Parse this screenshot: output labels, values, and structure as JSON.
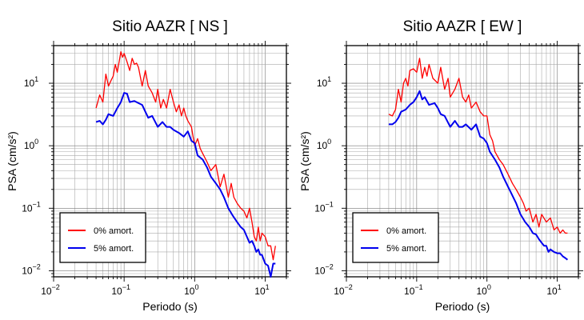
{
  "chart_data": [
    {
      "type": "line",
      "title": "Sitio AAZR [ NS ]",
      "xlabel": "Periodo (s)",
      "ylabel": "PSA (cm/s²)",
      "xscale": "log",
      "yscale": "log",
      "xlim": [
        0.01,
        20
      ],
      "ylim": [
        0.008,
        40
      ],
      "grid": true,
      "legend_position": "bottom-left",
      "xticks": [
        {
          "base": "10",
          "exp": "−2",
          "value": 0.01
        },
        {
          "base": "10",
          "exp": "−1",
          "value": 0.1
        },
        {
          "base": "10",
          "exp": "0",
          "value": 1
        },
        {
          "base": "10",
          "exp": "1",
          "value": 10
        }
      ],
      "yticks": [
        {
          "base": "10",
          "exp": "−2",
          "value": 0.01
        },
        {
          "base": "10",
          "exp": "−1",
          "value": 0.1
        },
        {
          "base": "10",
          "exp": "0",
          "value": 1
        },
        {
          "base": "10",
          "exp": "1",
          "value": 10
        }
      ],
      "series": [
        {
          "name": "0% amort.",
          "color": "#ff0000",
          "x": [
            0.04,
            0.045,
            0.05,
            0.055,
            0.06,
            0.065,
            0.07,
            0.075,
            0.08,
            0.085,
            0.09,
            0.095,
            0.1,
            0.11,
            0.12,
            0.13,
            0.14,
            0.15,
            0.16,
            0.18,
            0.2,
            0.22,
            0.25,
            0.28,
            0.3,
            0.33,
            0.36,
            0.4,
            0.45,
            0.5,
            0.55,
            0.6,
            0.65,
            0.7,
            0.75,
            0.8,
            0.9,
            1.0,
            1.1,
            1.2,
            1.3,
            1.5,
            1.7,
            2.0,
            2.3,
            2.6,
            3.0,
            3.3,
            3.6,
            4.0,
            4.5,
            5.0,
            5.5,
            6.0,
            6.5,
            7.0,
            7.5,
            8.0,
            8.5,
            9.0,
            10.0,
            11.0,
            12.0,
            13.0,
            14.0
          ],
          "y": [
            4.0,
            6.5,
            5.0,
            14.0,
            9.0,
            11.0,
            13.0,
            20.0,
            15.0,
            22.0,
            32.0,
            26.0,
            30.0,
            22.0,
            16.0,
            25.0,
            20.0,
            21.0,
            18.0,
            9.0,
            16.0,
            9.0,
            7.0,
            5.0,
            8.0,
            4.0,
            5.5,
            4.0,
            8.0,
            5.0,
            3.5,
            4.5,
            3.0,
            4.0,
            3.0,
            2.5,
            2.0,
            1.0,
            1.3,
            0.9,
            0.75,
            0.55,
            0.4,
            0.5,
            0.22,
            0.35,
            0.15,
            0.25,
            0.15,
            0.12,
            0.1,
            0.09,
            0.07,
            0.1,
            0.06,
            0.035,
            0.03,
            0.05,
            0.03,
            0.04,
            0.035,
            0.025,
            0.025,
            0.015,
            0.025
          ]
        },
        {
          "name": "5% amort.",
          "color": "#0000ee",
          "x": [
            0.04,
            0.045,
            0.05,
            0.055,
            0.06,
            0.07,
            0.08,
            0.09,
            0.1,
            0.11,
            0.12,
            0.14,
            0.16,
            0.18,
            0.2,
            0.22,
            0.25,
            0.3,
            0.35,
            0.4,
            0.45,
            0.5,
            0.6,
            0.7,
            0.8,
            0.9,
            1.0,
            1.1,
            1.3,
            1.5,
            1.7,
            2.0,
            2.3,
            2.6,
            3.0,
            3.5,
            4.0,
            4.5,
            5.0,
            5.5,
            6.0,
            6.5,
            7.0,
            7.5,
            8.0,
            8.5,
            9.0,
            10.0,
            11.0,
            12.0,
            13.0,
            14.0
          ],
          "y": [
            2.4,
            2.5,
            2.2,
            2.6,
            3.2,
            3.0,
            4.0,
            5.0,
            7.0,
            6.8,
            5.0,
            5.2,
            4.8,
            4.5,
            3.5,
            2.8,
            3.0,
            2.0,
            2.4,
            2.0,
            2.0,
            1.8,
            1.6,
            1.4,
            1.7,
            1.2,
            1.1,
            0.7,
            0.6,
            0.45,
            0.32,
            0.25,
            0.2,
            0.15,
            0.1,
            0.075,
            0.06,
            0.05,
            0.045,
            0.035,
            0.028,
            0.03,
            0.025,
            0.02,
            0.022,
            0.018,
            0.018,
            0.013,
            0.012,
            0.008,
            0.013,
            0.013
          ]
        }
      ]
    },
    {
      "type": "line",
      "title": "Sitio AAZR [ EW ]",
      "xlabel": "Periodo (s)",
      "ylabel": "PSA (cm/s²)",
      "xscale": "log",
      "yscale": "log",
      "xlim": [
        0.01,
        20
      ],
      "ylim": [
        0.008,
        40
      ],
      "grid": true,
      "legend_position": "bottom-left",
      "xticks": [
        {
          "base": "10",
          "exp": "−2",
          "value": 0.01
        },
        {
          "base": "10",
          "exp": "−1",
          "value": 0.1
        },
        {
          "base": "10",
          "exp": "0",
          "value": 1
        },
        {
          "base": "10",
          "exp": "1",
          "value": 10
        }
      ],
      "yticks": [
        {
          "base": "10",
          "exp": "−2",
          "value": 0.01
        },
        {
          "base": "10",
          "exp": "−1",
          "value": 0.1
        },
        {
          "base": "10",
          "exp": "0",
          "value": 1
        },
        {
          "base": "10",
          "exp": "1",
          "value": 10
        }
      ],
      "series": [
        {
          "name": "0% amort.",
          "color": "#ff0000",
          "x": [
            0.04,
            0.045,
            0.05,
            0.055,
            0.06,
            0.065,
            0.07,
            0.075,
            0.08,
            0.09,
            0.1,
            0.11,
            0.12,
            0.13,
            0.14,
            0.15,
            0.17,
            0.2,
            0.22,
            0.25,
            0.28,
            0.3,
            0.35,
            0.4,
            0.45,
            0.5,
            0.55,
            0.6,
            0.7,
            0.8,
            0.9,
            1.0,
            1.1,
            1.2,
            1.3,
            1.5,
            1.7,
            2.0,
            2.3,
            2.6,
            3.0,
            3.3,
            3.6,
            4.0,
            4.5,
            5.0,
            5.5,
            6.0,
            7.0,
            8.0,
            9.0,
            10.0,
            11.0,
            12.0,
            13.0,
            14.0
          ],
          "y": [
            3.2,
            3.0,
            3.8,
            8.0,
            5.0,
            10.0,
            12.0,
            9.0,
            16.0,
            17.0,
            15.0,
            25.0,
            12.0,
            18.0,
            13.0,
            20.0,
            12.0,
            10.0,
            18.0,
            8.0,
            12.0,
            6.0,
            8.0,
            12.0,
            6.0,
            5.0,
            6.5,
            4.0,
            5.0,
            3.5,
            3.0,
            3.0,
            1.5,
            1.2,
            0.8,
            0.6,
            0.5,
            0.35,
            0.25,
            0.2,
            0.15,
            0.12,
            0.09,
            0.1,
            0.06,
            0.08,
            0.05,
            0.08,
            0.06,
            0.07,
            0.045,
            0.05,
            0.04,
            0.045,
            0.04,
            0.04
          ]
        },
        {
          "name": "5% amort.",
          "color": "#0000ee",
          "x": [
            0.04,
            0.045,
            0.05,
            0.055,
            0.06,
            0.07,
            0.08,
            0.09,
            0.1,
            0.11,
            0.12,
            0.13,
            0.15,
            0.18,
            0.2,
            0.22,
            0.25,
            0.3,
            0.35,
            0.4,
            0.45,
            0.5,
            0.6,
            0.7,
            0.8,
            0.9,
            1.0,
            1.1,
            1.3,
            1.5,
            1.7,
            2.0,
            2.3,
            2.6,
            3.0,
            3.5,
            4.0,
            4.5,
            5.0,
            5.5,
            6.0,
            6.5,
            7.0,
            7.5,
            8.0,
            9.0,
            10.0,
            11.0,
            12.0,
            13.0,
            14.0
          ],
          "y": [
            2.2,
            2.2,
            2.4,
            2.8,
            3.5,
            3.8,
            4.5,
            5.0,
            6.0,
            7.5,
            5.5,
            6.0,
            4.5,
            4.8,
            4.0,
            3.2,
            3.0,
            2.0,
            2.5,
            2.0,
            2.0,
            2.2,
            1.8,
            2.2,
            1.4,
            1.3,
            1.1,
            0.8,
            0.6,
            0.45,
            0.32,
            0.22,
            0.16,
            0.12,
            0.08,
            0.06,
            0.05,
            0.04,
            0.038,
            0.032,
            0.028,
            0.025,
            0.025,
            0.02,
            0.022,
            0.02,
            0.019,
            0.019,
            0.017,
            0.016,
            0.015
          ]
        }
      ]
    }
  ]
}
